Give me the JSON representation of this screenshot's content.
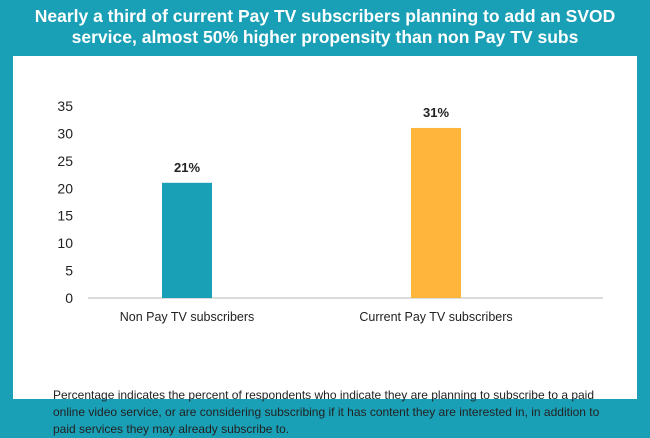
{
  "title_line1": "Nearly a third of current Pay TV subscribers planning to add an SVOD",
  "title_line2": "service, almost 50% higher propensity than non Pay TV subs",
  "footnote": "Percentage indicates the percent of respondents who indicate they are planning to subscribe to a paid online video service, or are considering subscribing if it has content they are interested in, in addition to paid services they may already subscribe to.",
  "colors": {
    "background": "#1aa0b6",
    "panel": "#ffffff",
    "bar_non_pay": "#1aa0b6",
    "bar_current_pay": "#ffb43c",
    "axis": "#b7b7b7",
    "text": "#222222"
  },
  "chart_data": {
    "type": "bar",
    "categories": [
      "Non Pay TV subscribers",
      "Current Pay TV subscribers"
    ],
    "values": [
      21,
      31
    ],
    "value_labels": [
      "21%",
      "31%"
    ],
    "ylim": [
      0,
      35
    ],
    "yticks": [
      0,
      5,
      10,
      15,
      20,
      25,
      30,
      35
    ],
    "grid": false,
    "legend": "none"
  }
}
